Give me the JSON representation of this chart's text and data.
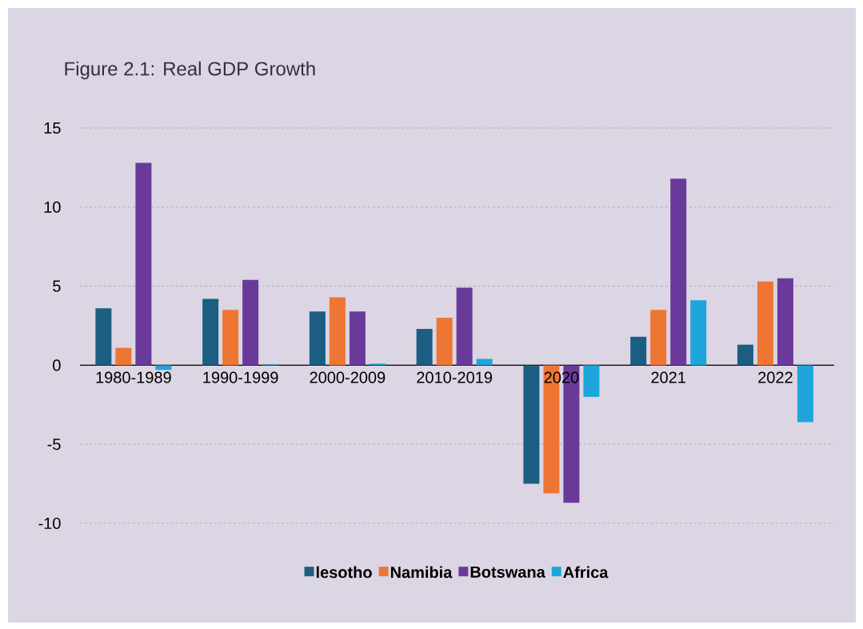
{
  "chart_data": {
    "type": "bar",
    "title": "Figure 2.1: Real GDP Growth",
    "categories": [
      "1980-1989",
      "1990-1999",
      "2000-2009",
      "2010-2019",
      "2020",
      "2021",
      "2022"
    ],
    "series": [
      {
        "name": "lesotho",
        "color": "#1b5e82",
        "values": [
          3.6,
          4.2,
          3.4,
          2.3,
          -7.5,
          1.8,
          1.3
        ]
      },
      {
        "name": "Namibia",
        "color": "#ee7634",
        "values": [
          1.1,
          3.5,
          4.3,
          3.0,
          -8.1,
          3.5,
          5.3
        ]
      },
      {
        "name": "Botswana",
        "color": "#6a3a9a",
        "values": [
          12.8,
          5.4,
          3.4,
          4.9,
          -8.7,
          11.8,
          5.5
        ]
      },
      {
        "name": "Africa",
        "color": "#1ea6dc",
        "values": [
          -0.3,
          0.05,
          0.1,
          0.4,
          -2.0,
          4.1,
          -3.6
        ]
      }
    ],
    "ylim": [
      -10,
      15
    ],
    "yticks": [
      -10,
      -5,
      0,
      5,
      10,
      15
    ],
    "grid": "y",
    "legend": "bottom"
  }
}
